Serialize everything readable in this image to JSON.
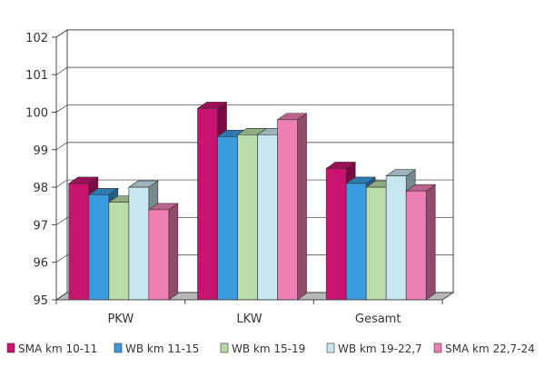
{
  "chart_data": {
    "type": "bar",
    "title": "",
    "xlabel": "",
    "ylabel": "",
    "categories": [
      "PKW",
      "LKW",
      "Gesamt"
    ],
    "ylim": [
      95,
      102
    ],
    "yticks": [
      "95",
      "96",
      "97",
      "98",
      "99",
      "100",
      "101",
      "102"
    ],
    "grid": true,
    "legend_position": "bottom",
    "three_d": true,
    "series": [
      {
        "name": "SMA km 10-11",
        "color": "#c8136f",
        "values": [
          98.1,
          100.1,
          98.5
        ]
      },
      {
        "name": "WB km 11-15",
        "color": "#3a9ce0",
        "values": [
          97.8,
          99.35,
          98.1
        ]
      },
      {
        "name": "WB km 15-19",
        "color": "#b9dcaa",
        "values": [
          97.6,
          99.4,
          98.0
        ]
      },
      {
        "name": "WB km 19-22,7",
        "color": "#c7e6ee",
        "values": [
          98.0,
          99.4,
          98.3
        ]
      },
      {
        "name": "SMA km 22,7-24",
        "color": "#ef7fb3",
        "values": [
          97.4,
          99.8,
          97.9
        ]
      }
    ]
  }
}
